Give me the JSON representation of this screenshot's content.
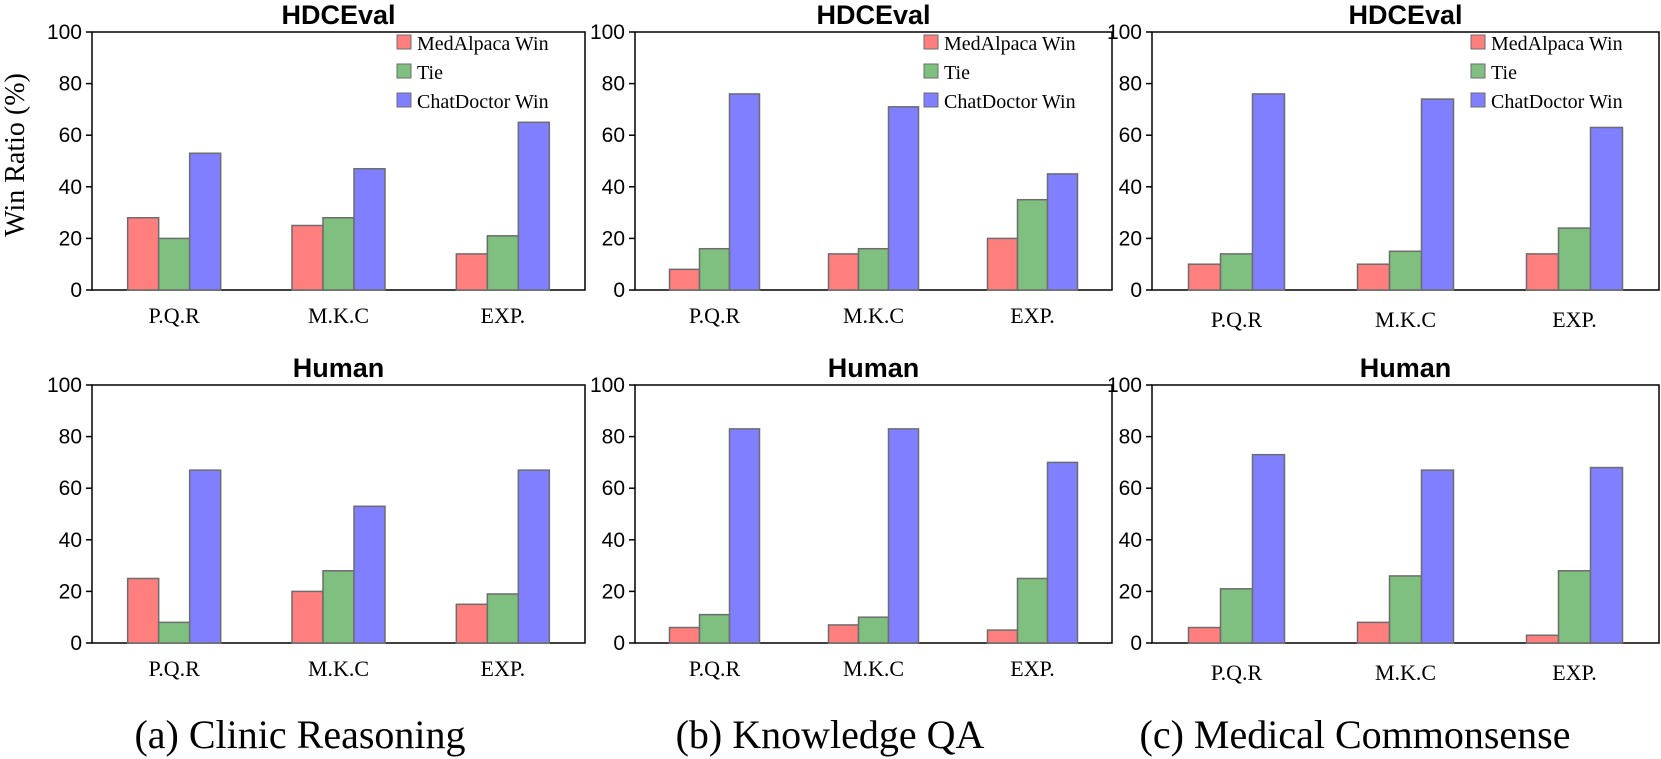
{
  "colors": {
    "medalpaca": "#ff7f7f",
    "tie": "#7fbf7f",
    "chatdoctor": "#7f7fff"
  },
  "y_axis_label": "Win Ratio (%)",
  "captions": [
    "(a) Clinic Reasoning",
    "(b) Knowledge QA",
    "(c) Medical Commonsense"
  ],
  "chart_data": [
    {
      "type": "bar",
      "title": "HDCEval",
      "group": "(a) Clinic Reasoning",
      "categories": [
        "P.Q.R",
        "M.K.C",
        "EXP."
      ],
      "series": [
        {
          "name": "MedAlpaca Win",
          "values": [
            28,
            25,
            14
          ]
        },
        {
          "name": "Tie",
          "values": [
            20,
            28,
            21
          ]
        },
        {
          "name": "ChatDoctor Win",
          "values": [
            53,
            47,
            65
          ]
        }
      ],
      "ylabel": "Win Ratio (%)",
      "ylim": [
        0,
        100
      ],
      "yticks": [
        0,
        20,
        40,
        60,
        80,
        100
      ],
      "legend": "top-right"
    },
    {
      "type": "bar",
      "title": "HDCEval",
      "group": "(b) Knowledge QA",
      "categories": [
        "P.Q.R",
        "M.K.C",
        "EXP."
      ],
      "series": [
        {
          "name": "MedAlpaca Win",
          "values": [
            8,
            14,
            20
          ]
        },
        {
          "name": "Tie",
          "values": [
            16,
            16,
            35
          ]
        },
        {
          "name": "ChatDoctor Win",
          "values": [
            76,
            71,
            45
          ]
        }
      ],
      "ylim": [
        0,
        100
      ],
      "yticks": [
        0,
        20,
        40,
        60,
        80,
        100
      ],
      "legend": "top-right"
    },
    {
      "type": "bar",
      "title": "HDCEval",
      "group": "(c) Medical Commonsense",
      "categories": [
        "P.Q.R",
        "M.K.C",
        "EXP."
      ],
      "series": [
        {
          "name": "MedAlpaca Win",
          "values": [
            10,
            10,
            14
          ]
        },
        {
          "name": "Tie",
          "values": [
            14,
            15,
            24
          ]
        },
        {
          "name": "ChatDoctor Win",
          "values": [
            76,
            74,
            63
          ]
        }
      ],
      "ylim": [
        0,
        100
      ],
      "yticks": [
        0,
        20,
        40,
        60,
        80,
        100
      ],
      "legend": "top-right"
    },
    {
      "type": "bar",
      "title": "Human",
      "group": "(a) Clinic Reasoning",
      "categories": [
        "P.Q.R",
        "M.K.C",
        "EXP."
      ],
      "series": [
        {
          "name": "MedAlpaca Win",
          "values": [
            25,
            20,
            15
          ]
        },
        {
          "name": "Tie",
          "values": [
            8,
            28,
            19
          ]
        },
        {
          "name": "ChatDoctor Win",
          "values": [
            67,
            53,
            67
          ]
        }
      ],
      "ylim": [
        0,
        100
      ],
      "yticks": [
        0,
        20,
        40,
        60,
        80,
        100
      ],
      "legend": "none"
    },
    {
      "type": "bar",
      "title": "Human",
      "group": "(b) Knowledge QA",
      "categories": [
        "P.Q.R",
        "M.K.C",
        "EXP."
      ],
      "series": [
        {
          "name": "MedAlpaca Win",
          "values": [
            6,
            7,
            5
          ]
        },
        {
          "name": "Tie",
          "values": [
            11,
            10,
            25
          ]
        },
        {
          "name": "ChatDoctor Win",
          "values": [
            83,
            83,
            70
          ]
        }
      ],
      "ylim": [
        0,
        100
      ],
      "yticks": [
        0,
        20,
        40,
        60,
        80,
        100
      ],
      "legend": "none"
    },
    {
      "type": "bar",
      "title": "Human",
      "group": "(c) Medical Commonsense",
      "categories": [
        "P.Q.R",
        "M.K.C",
        "EXP."
      ],
      "series": [
        {
          "name": "MedAlpaca Win",
          "values": [
            6,
            8,
            3
          ]
        },
        {
          "name": "Tie",
          "values": [
            21,
            26,
            28
          ]
        },
        {
          "name": "ChatDoctor Win",
          "values": [
            73,
            67,
            68
          ]
        }
      ],
      "ylim": [
        0,
        100
      ],
      "yticks": [
        0,
        20,
        40,
        60,
        80,
        100
      ],
      "legend": "none"
    }
  ]
}
